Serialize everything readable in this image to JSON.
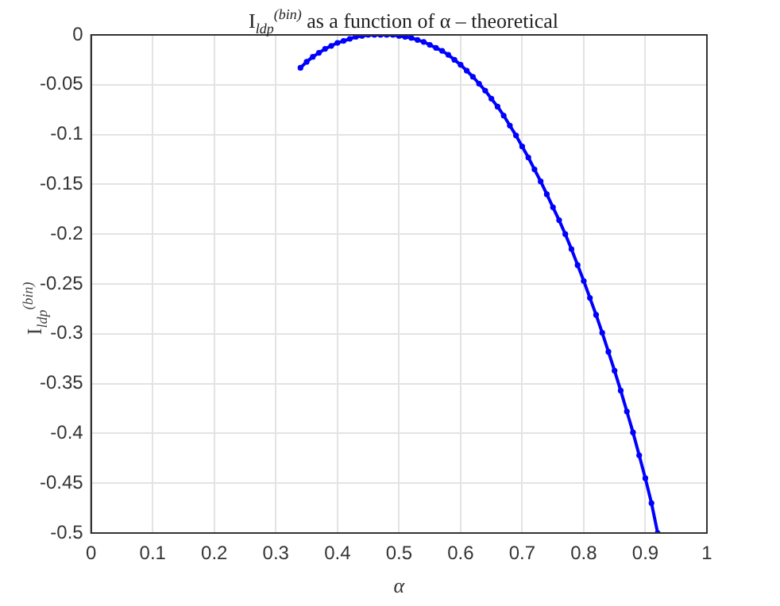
{
  "chart_data": {
    "type": "line",
    "title": "I$_{ldp}$$^{(bin)}$ as a function of α – theoretical",
    "xlabel": "α",
    "ylabel": "I$_{ldp}$$^{(bin)}$",
    "x": [
      0.34,
      0.35,
      0.36,
      0.37,
      0.38,
      0.39,
      0.4,
      0.41,
      0.42,
      0.43,
      0.44,
      0.45,
      0.46,
      0.47,
      0.48,
      0.49,
      0.5,
      0.51,
      0.52,
      0.53,
      0.54,
      0.55,
      0.56,
      0.57,
      0.58,
      0.59,
      0.6,
      0.61,
      0.62,
      0.63,
      0.64,
      0.65,
      0.66,
      0.67,
      0.68,
      0.69,
      0.7,
      0.71,
      0.72,
      0.73,
      0.74,
      0.75,
      0.76,
      0.77,
      0.78,
      0.79,
      0.8,
      0.81,
      0.82,
      0.83,
      0.84,
      0.85,
      0.86,
      0.87,
      0.88,
      0.89,
      0.9,
      0.91,
      0.92
    ],
    "series": [
      {
        "color": "#0000ff",
        "values": [
          -0.033,
          -0.027,
          -0.022,
          -0.018,
          -0.014,
          -0.011,
          -0.008,
          -0.006,
          -0.004,
          -0.002,
          -0.001,
          0,
          0,
          0,
          0,
          0,
          -0.001,
          -0.002,
          -0.003,
          -0.005,
          -0.007,
          -0.01,
          -0.013,
          -0.016,
          -0.02,
          -0.025,
          -0.03,
          -0.036,
          -0.042,
          -0.049,
          -0.056,
          -0.064,
          -0.072,
          -0.081,
          -0.091,
          -0.101,
          -0.112,
          -0.123,
          -0.135,
          -0.147,
          -0.16,
          -0.173,
          -0.186,
          -0.2,
          -0.215,
          -0.231,
          -0.247,
          -0.264,
          -0.281,
          -0.299,
          -0.318,
          -0.337,
          -0.357,
          -0.378,
          -0.399,
          -0.422,
          -0.445,
          -0.47,
          -0.5
        ]
      }
    ],
    "xlim": [
      0,
      1
    ],
    "xticks": [
      0,
      0.1,
      0.2,
      0.3,
      0.4,
      0.5,
      0.6,
      0.7,
      0.8,
      0.9,
      1
    ],
    "ylim": [
      -0.5,
      0
    ],
    "yticks": [
      -0.5,
      -0.45,
      -0.4,
      -0.35,
      -0.3,
      -0.25,
      -0.2,
      -0.15,
      -0.1,
      -0.05,
      0
    ],
    "grid": true,
    "marker": "circle",
    "line_style": "solid"
  }
}
